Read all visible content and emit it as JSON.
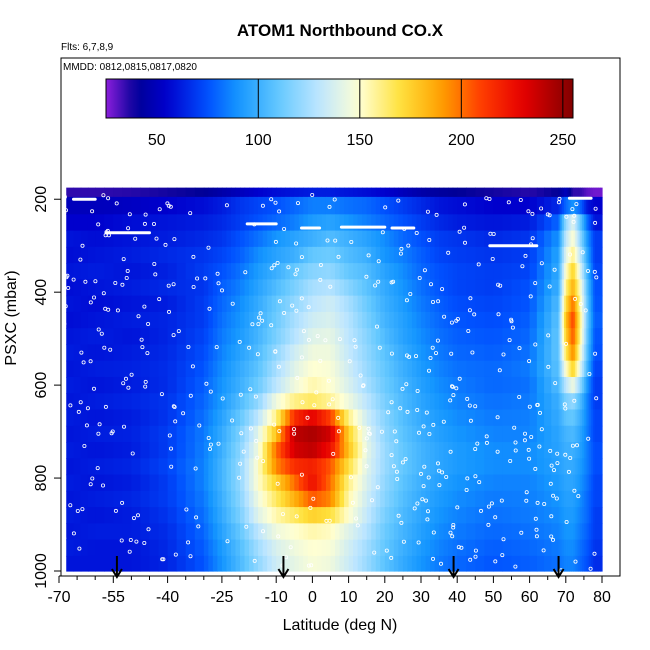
{
  "chart_data": {
    "type": "heatmap",
    "title": "ATOM1 Northbound CO.X",
    "subtitle_flights": "Flts: 6,7,8,9",
    "subtitle_dates": "MMDD: 0812,0815,0817,0820",
    "xlabel": "Latitude (deg N)",
    "ylabel": "PSXC (mbar)",
    "xlim": [
      -70,
      80
    ],
    "ylim": [
      1000,
      150
    ],
    "x_ticks": [
      -70,
      -55,
      -40,
      -25,
      -10,
      0,
      10,
      20,
      30,
      40,
      50,
      60,
      70,
      80
    ],
    "y_ticks": [
      200,
      400,
      600,
      800,
      1000
    ],
    "colorbar": {
      "range": [
        25,
        255
      ],
      "ticks": [
        50,
        100,
        150,
        200,
        250
      ],
      "lines": [
        100,
        150,
        200,
        250
      ]
    },
    "arrow_latitudes": [
      -54,
      -8,
      39,
      68
    ],
    "levels": [
      175,
      215,
      250,
      285,
      320,
      355,
      390,
      425,
      460,
      495,
      530,
      565,
      600,
      635,
      670,
      705,
      740,
      775,
      810,
      845,
      880,
      915,
      950,
      985
    ],
    "lat_bins": [
      -68,
      -60,
      -50,
      -40,
      -30,
      -25,
      -20,
      -15,
      -10,
      -5,
      0,
      5,
      10,
      15,
      20,
      25,
      30,
      35,
      40,
      50,
      60,
      68,
      70,
      72,
      74,
      76,
      78,
      80
    ],
    "co_by_level": [
      [
        35,
        35,
        36,
        38,
        40,
        45,
        50,
        55,
        58,
        60,
        62,
        62,
        60,
        58,
        55,
        50,
        45,
        42,
        40,
        38,
        36,
        40,
        50,
        35,
        35,
        30,
        28
      ],
      [
        50,
        50,
        52,
        55,
        58,
        62,
        68,
        72,
        75,
        80,
        85,
        85,
        82,
        80,
        75,
        70,
        65,
        60,
        58,
        55,
        55,
        65,
        80,
        90,
        80,
        60,
        55
      ],
      [
        55,
        55,
        58,
        60,
        62,
        65,
        70,
        75,
        80,
        85,
        92,
        95,
        90,
        85,
        80,
        75,
        70,
        65,
        62,
        60,
        62,
        80,
        120,
        140,
        110,
        80,
        60
      ],
      [
        60,
        58,
        60,
        62,
        65,
        68,
        75,
        82,
        90,
        95,
        100,
        105,
        100,
        95,
        88,
        80,
        75,
        70,
        68,
        65,
        68,
        90,
        130,
        150,
        120,
        90,
        70
      ],
      [
        58,
        60,
        62,
        65,
        68,
        72,
        78,
        88,
        95,
        100,
        110,
        112,
        105,
        100,
        90,
        85,
        78,
        72,
        70,
        68,
        70,
        95,
        140,
        160,
        130,
        95,
        70
      ],
      [
        60,
        62,
        60,
        63,
        70,
        75,
        82,
        92,
        100,
        110,
        118,
        120,
        110,
        105,
        95,
        88,
        80,
        75,
        72,
        70,
        72,
        98,
        150,
        175,
        140,
        100,
        72
      ],
      [
        58,
        60,
        62,
        65,
        68,
        78,
        85,
        95,
        105,
        115,
        125,
        128,
        118,
        108,
        98,
        90,
        82,
        76,
        72,
        70,
        75,
        100,
        160,
        185,
        150,
        105,
        75
      ],
      [
        60,
        58,
        60,
        62,
        70,
        80,
        88,
        98,
        110,
        120,
        130,
        135,
        125,
        112,
        100,
        92,
        84,
        78,
        74,
        72,
        76,
        105,
        170,
        200,
        155,
        108,
        76
      ],
      [
        58,
        60,
        62,
        64,
        70,
        82,
        90,
        100,
        112,
        125,
        135,
        138,
        128,
        115,
        102,
        94,
        86,
        80,
        76,
        74,
        78,
        108,
        180,
        210,
        160,
        110,
        78
      ],
      [
        60,
        62,
        60,
        64,
        72,
        84,
        92,
        102,
        115,
        128,
        140,
        142,
        130,
        118,
        105,
        95,
        88,
        82,
        78,
        76,
        80,
        110,
        175,
        205,
        158,
        108,
        76
      ],
      [
        62,
        60,
        62,
        65,
        74,
        86,
        95,
        105,
        120,
        135,
        145,
        145,
        132,
        120,
        108,
        98,
        90,
        84,
        80,
        78,
        82,
        110,
        165,
        195,
        150,
        105,
        75
      ],
      [
        60,
        62,
        63,
        66,
        76,
        88,
        98,
        108,
        125,
        140,
        150,
        148,
        135,
        122,
        110,
        100,
        92,
        86,
        82,
        80,
        84,
        108,
        150,
        175,
        140,
        100,
        72
      ],
      [
        62,
        60,
        62,
        66,
        78,
        90,
        100,
        112,
        130,
        145,
        155,
        150,
        138,
        125,
        112,
        102,
        94,
        88,
        84,
        80,
        82,
        105,
        130,
        145,
        120,
        90,
        70
      ],
      [
        60,
        62,
        64,
        68,
        80,
        92,
        105,
        120,
        145,
        160,
        165,
        158,
        145,
        130,
        115,
        104,
        96,
        90,
        86,
        82,
        84,
        100,
        115,
        120,
        105,
        85,
        70
      ],
      [
        62,
        60,
        62,
        68,
        82,
        95,
        110,
        130,
        160,
        215,
        230,
        210,
        160,
        135,
        118,
        106,
        98,
        92,
        88,
        84,
        85,
        98,
        108,
        110,
        100,
        85,
        72
      ],
      [
        60,
        62,
        63,
        70,
        84,
        98,
        115,
        140,
        180,
        240,
        245,
        235,
        175,
        140,
        120,
        108,
        100,
        94,
        90,
        86,
        86,
        96,
        102,
        104,
        96,
        84,
        72
      ],
      [
        62,
        60,
        62,
        70,
        85,
        100,
        118,
        145,
        200,
        235,
        240,
        225,
        180,
        142,
        122,
        110,
        102,
        96,
        92,
        88,
        88,
        95,
        100,
        100,
        94,
        84,
        74
      ],
      [
        60,
        62,
        64,
        72,
        86,
        102,
        120,
        150,
        195,
        215,
        220,
        205,
        170,
        140,
        122,
        110,
        102,
        96,
        92,
        88,
        88,
        94,
        98,
        98,
        92,
        84,
        74
      ],
      [
        62,
        60,
        62,
        70,
        86,
        102,
        120,
        150,
        175,
        200,
        225,
        200,
        160,
        138,
        120,
        108,
        100,
        94,
        90,
        86,
        86,
        92,
        96,
        96,
        90,
        82,
        72
      ],
      [
        60,
        62,
        64,
        70,
        84,
        100,
        118,
        145,
        165,
        185,
        205,
        195,
        155,
        135,
        118,
        106,
        98,
        92,
        88,
        84,
        85,
        90,
        94,
        94,
        88,
        80,
        72
      ],
      [
        62,
        60,
        62,
        68,
        82,
        98,
        115,
        140,
        155,
        165,
        175,
        170,
        150,
        132,
        115,
        104,
        96,
        90,
        86,
        82,
        84,
        88,
        92,
        92,
        86,
        80,
        70
      ],
      [
        60,
        62,
        62,
        66,
        80,
        95,
        110,
        130,
        145,
        150,
        155,
        152,
        140,
        128,
        112,
        102,
        94,
        88,
        84,
        80,
        82,
        86,
        90,
        90,
        84,
        78,
        70
      ],
      [
        62,
        60,
        60,
        65,
        78,
        92,
        106,
        124,
        138,
        145,
        150,
        148,
        136,
        124,
        110,
        100,
        92,
        86,
        82,
        78,
        80,
        84,
        88,
        88,
        82,
        76,
        68
      ],
      [
        60,
        60,
        60,
        64,
        76,
        90,
        104,
        120,
        135,
        142,
        148,
        145,
        134,
        122,
        108,
        98,
        90,
        84,
        80,
        76,
        78,
        82,
        86,
        86,
        80,
        74,
        66
      ]
    ]
  }
}
